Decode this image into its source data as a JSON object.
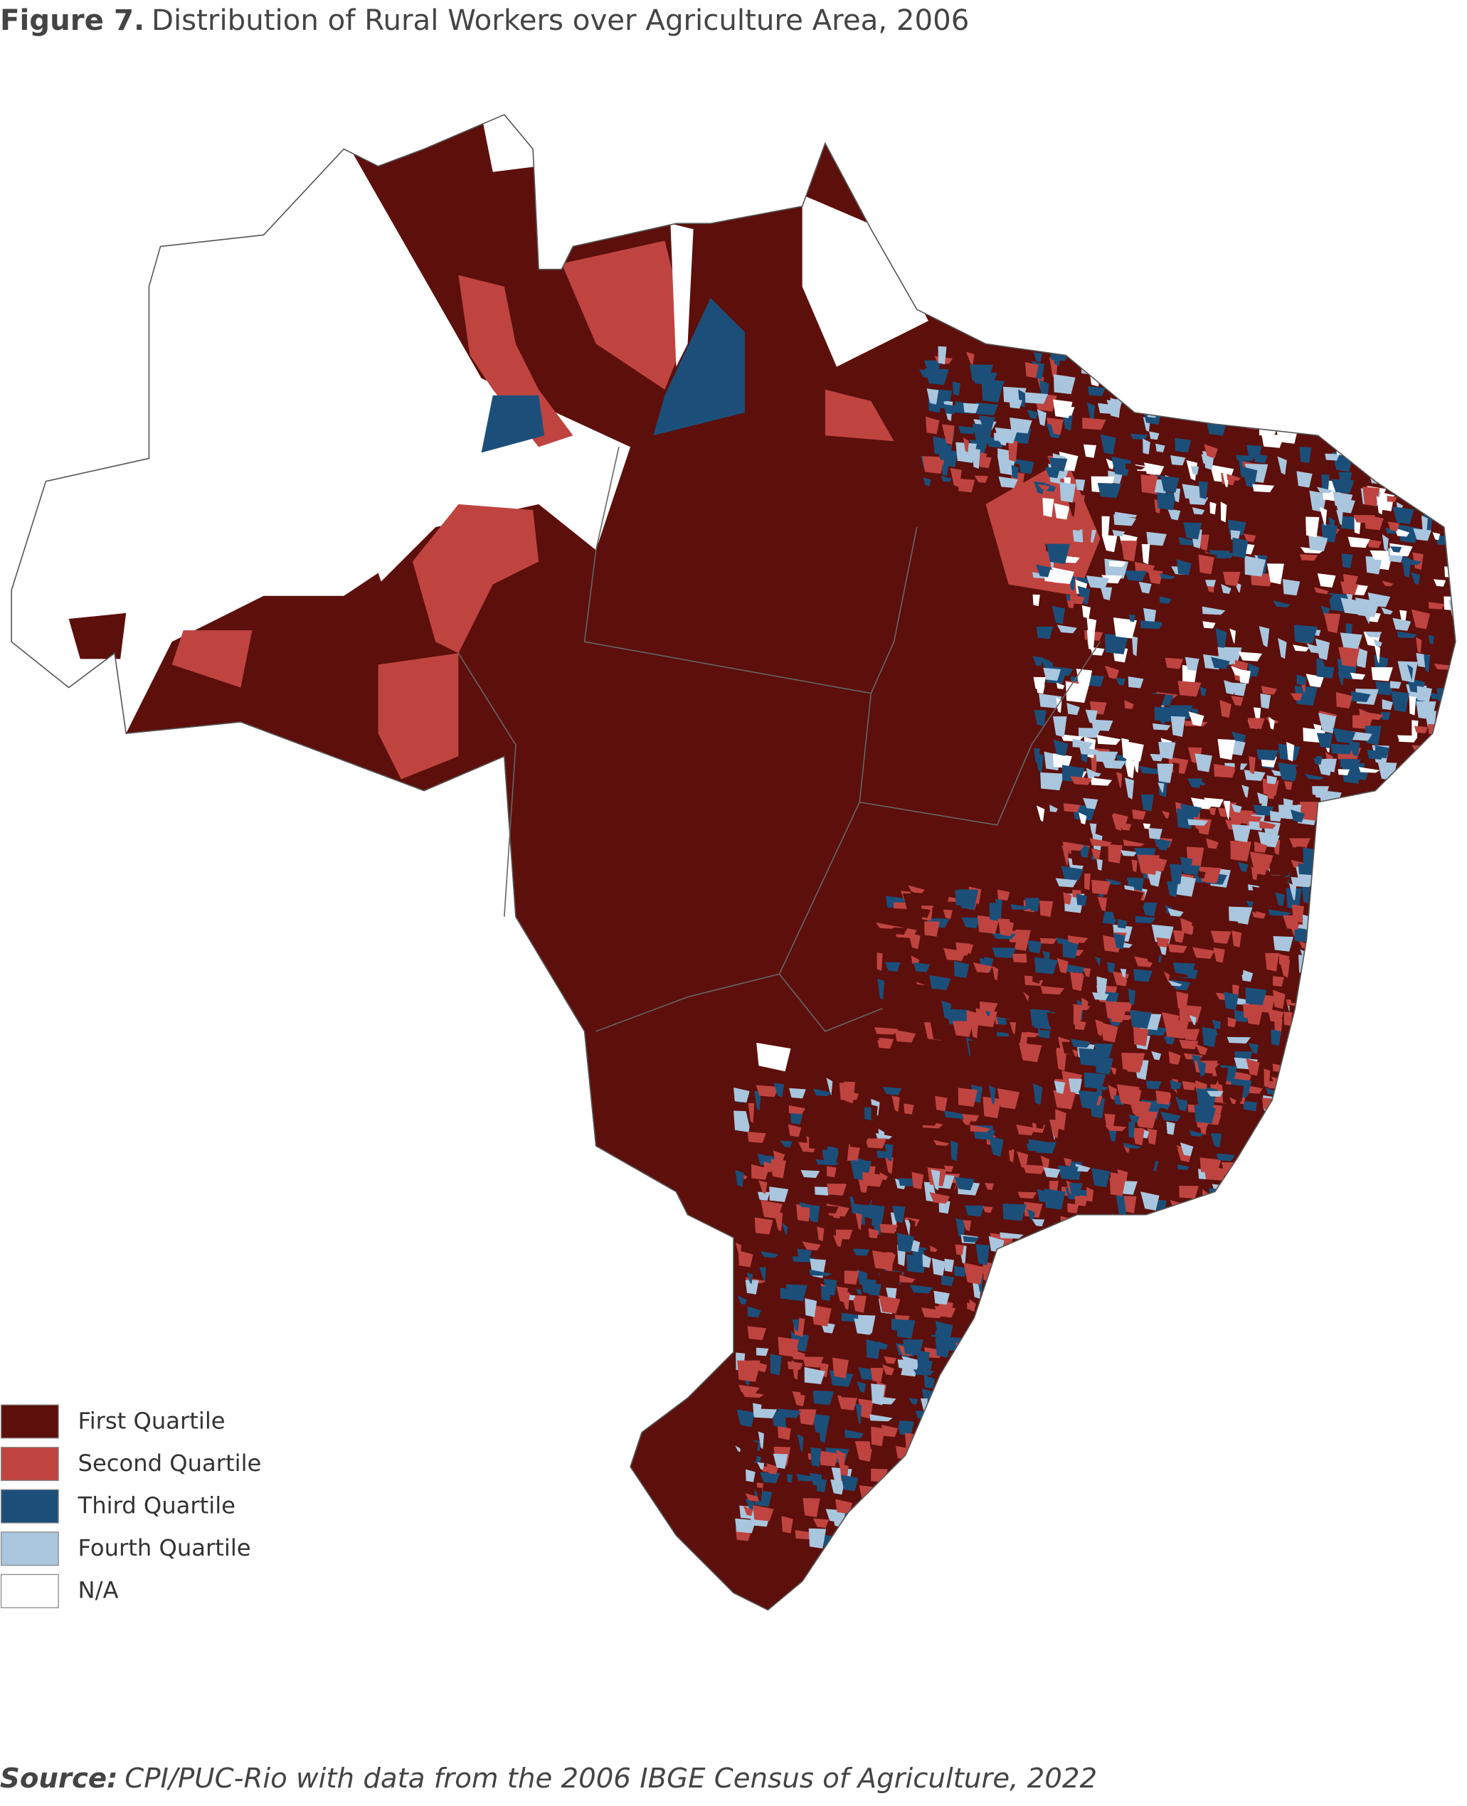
{
  "title": {
    "label": "Figure 7.",
    "text": "Distribution of Rural Workers over Agriculture Area, 2006"
  },
  "legend": [
    {
      "label": "First Quartile",
      "color": "#5c0f0b"
    },
    {
      "label": "Second Quartile",
      "color": "#bf4440"
    },
    {
      "label": "Third Quartile",
      "color": "#1b4f7a"
    },
    {
      "label": "Fourth Quartile",
      "color": "#a9c6de"
    },
    {
      "label": "N/A",
      "color": "#ffffff"
    }
  ],
  "source": {
    "label": "Source:",
    "text": "CPI/PUC-Rio with data from the 2006 IBGE Census of Agriculture, 2022"
  }
}
